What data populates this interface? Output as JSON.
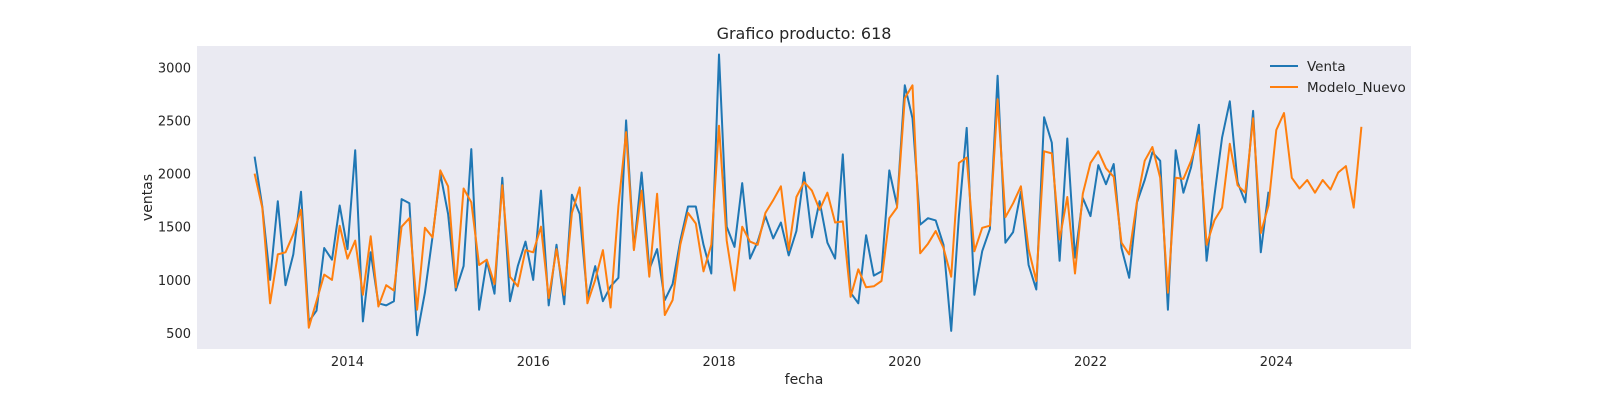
{
  "chart_data": {
    "type": "line",
    "title": "Grafico producto: 618",
    "xlabel": "fecha",
    "ylabel": "ventas",
    "xlim": [
      2012.38,
      2025.45
    ],
    "ylim": [
      350,
      3200
    ],
    "xticks": [
      2014,
      2016,
      2018,
      2020,
      2022,
      2024
    ],
    "yticks": [
      500,
      1000,
      1500,
      2000,
      2500,
      3000
    ],
    "grid": false,
    "legend_position": "top-right",
    "colors": {
      "background": "#eaeaf2",
      "venta": "#1f77b4",
      "modelo": "#ff7f0e"
    },
    "series": [
      {
        "name": "Venta",
        "x_start": 2013.0,
        "x_step": 0.08333,
        "values": [
          2160,
          1690,
          1000,
          1740,
          950,
          1240,
          1830,
          610,
          710,
          1300,
          1190,
          1700,
          1290,
          2220,
          610,
          1260,
          780,
          760,
          800,
          1760,
          1720,
          480,
          880,
          1410,
          2000,
          1620,
          900,
          1130,
          2230,
          720,
          1180,
          870,
          1960,
          800,
          1130,
          1360,
          1000,
          1840,
          760,
          1330,
          770,
          1800,
          1620,
          830,
          1130,
          800,
          940,
          1020,
          2500,
          1290,
          2010,
          1100,
          1290,
          810,
          960,
          1370,
          1690,
          1690,
          1330,
          1060,
          3120,
          1500,
          1310,
          1910,
          1200,
          1360,
          1600,
          1390,
          1540,
          1230,
          1460,
          2010,
          1400,
          1740,
          1350,
          1200,
          2180,
          880,
          780,
          1420,
          1040,
          1080,
          2030,
          1700,
          2830,
          2520,
          1520,
          1580,
          1560,
          1330,
          520,
          1600,
          2430,
          860,
          1270,
          1480,
          2920,
          1350,
          1450,
          1830,
          1140,
          910,
          2530,
          2290,
          1180,
          2330,
          1210,
          1770,
          1600,
          2080,
          1900,
          2090,
          1300,
          1020,
          1730,
          1940,
          2200,
          2120,
          720,
          2220,
          1820,
          2060,
          2460,
          1180,
          1790,
          2340,
          2680,
          1920,
          1730,
          2590,
          1260,
          1830
        ]
      },
      {
        "name": "Modelo_Nuevo",
        "x_start": 2013.0,
        "x_step": 0.08333,
        "values": [
          2000,
          1680,
          780,
          1240,
          1260,
          1430,
          1660,
          550,
          800,
          1050,
          1000,
          1510,
          1200,
          1370,
          860,
          1410,
          750,
          950,
          900,
          1500,
          1580,
          720,
          1490,
          1400,
          2030,
          1880,
          930,
          1860,
          1730,
          1140,
          1190,
          960,
          1890,
          1030,
          940,
          1280,
          1260,
          1500,
          830,
          1290,
          860,
          1630,
          1870,
          780,
          1000,
          1280,
          740,
          1690,
          2390,
          1280,
          1840,
          1030,
          1810,
          670,
          810,
          1330,
          1630,
          1530,
          1080,
          1330,
          2450,
          1370,
          900,
          1500,
          1360,
          1330,
          1630,
          1750,
          1880,
          1280,
          1780,
          1920,
          1840,
          1660,
          1820,
          1540,
          1550,
          840,
          1100,
          930,
          940,
          990,
          1580,
          1680,
          2710,
          2830,
          1250,
          1340,
          1460,
          1300,
          1030,
          2100,
          2150,
          1270,
          1490,
          1510,
          2700,
          1590,
          1720,
          1880,
          1290,
          990,
          2210,
          2190,
          1380,
          1780,
          1060,
          1810,
          2100,
          2210,
          2050,
          1970,
          1350,
          1240,
          1740,
          2120,
          2250,
          1960,
          880,
          1960,
          1950,
          2120,
          2360,
          1330,
          1560,
          1680,
          2280,
          1890,
          1820,
          2520,
          1440,
          1700,
          2410,
          2570,
          1960,
          1860,
          1940,
          1820,
          1940,
          1850,
          2010,
          2070,
          1680,
          2440
        ]
      }
    ]
  }
}
